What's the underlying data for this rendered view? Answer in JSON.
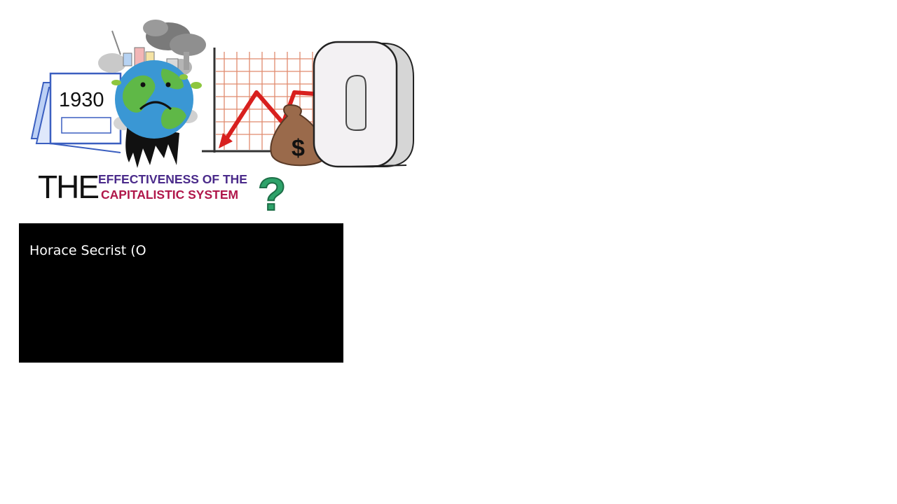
{
  "illustration": {
    "calendar_year": "1930",
    "moneybag_symbol": "$",
    "big_digit": "0",
    "question_mark": "?"
  },
  "title": {
    "prefix": "THE",
    "line1": "EFFECTIVENESS OF THE",
    "line2": "CAPITALISTIC SYSTEM",
    "line1_color": "#4a2a8a",
    "line2_color": "#b0174a"
  },
  "caption": {
    "text": "Horace Secrist (O"
  }
}
